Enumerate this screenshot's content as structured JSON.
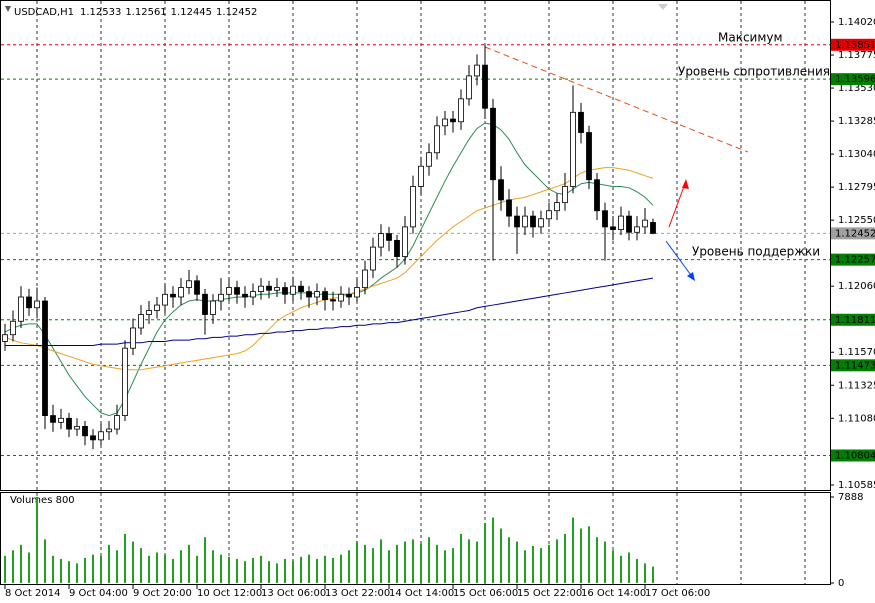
{
  "chart_data": {
    "type": "candlestick",
    "symbol": "USDCAD,H1",
    "categories": [
      "8 Oct 2014",
      null,
      null,
      null,
      null,
      null,
      null,
      null,
      "9 Oct 04:00",
      null,
      null,
      null,
      null,
      null,
      null,
      null,
      "9 Oct 20:00",
      null,
      null,
      null,
      null,
      null,
      null,
      null,
      "10 Oct 12:00",
      null,
      null,
      null,
      null,
      null,
      null,
      null,
      "13 Oct 06:00",
      null,
      null,
      null,
      null,
      null,
      null,
      null,
      "13 Oct 22:00",
      null,
      null,
      null,
      null,
      null,
      null,
      null,
      "14 Oct 14:00",
      null,
      null,
      null,
      null,
      null,
      null,
      null,
      "15 Oct 06:00",
      null,
      null,
      null,
      null,
      null,
      null,
      null,
      "15 Oct 22:00",
      null,
      null,
      null,
      null,
      null,
      null,
      null,
      "16 Oct 14:00",
      null,
      null,
      null,
      null,
      null,
      null,
      null,
      "17 Oct 06:00",
      null
    ],
    "candles": [
      [
        1.1165,
        1.1178,
        1.1158,
        1.117
      ],
      [
        1.117,
        1.1188,
        1.1165,
        1.118
      ],
      [
        1.118,
        1.1206,
        1.1175,
        1.1198
      ],
      [
        1.1198,
        1.1204,
        1.1184,
        1.119
      ],
      [
        1.119,
        1.1205,
        1.1182,
        1.1195
      ],
      [
        1.1195,
        1.1198,
        1.11,
        1.111
      ],
      [
        1.111,
        1.1118,
        1.1098,
        1.1105
      ],
      [
        1.1105,
        1.1115,
        1.11,
        1.1108
      ],
      [
        1.1108,
        1.1112,
        1.1094,
        1.11
      ],
      [
        1.11,
        1.1108,
        1.1095,
        1.1102
      ],
      [
        1.1102,
        1.1106,
        1.1088,
        1.1095
      ],
      [
        1.1095,
        1.11,
        1.1085,
        1.1092
      ],
      [
        1.1092,
        1.1104,
        1.1088,
        1.1098
      ],
      [
        1.1098,
        1.1106,
        1.1092,
        1.11
      ],
      [
        1.11,
        1.1118,
        1.1096,
        1.111
      ],
      [
        1.111,
        1.1166,
        1.1106,
        1.116
      ],
      [
        1.116,
        1.1182,
        1.1155,
        1.1175
      ],
      [
        1.1175,
        1.1192,
        1.117,
        1.1185
      ],
      [
        1.1185,
        1.1195,
        1.1178,
        1.1188
      ],
      [
        1.1188,
        1.1198,
        1.1182,
        1.1192
      ],
      [
        1.1192,
        1.1208,
        1.1186,
        1.12
      ],
      [
        1.12,
        1.1206,
        1.119,
        1.1198
      ],
      [
        1.1198,
        1.1212,
        1.1192,
        1.1205
      ],
      [
        1.1205,
        1.1218,
        1.12,
        1.121
      ],
      [
        1.121,
        1.1214,
        1.1195,
        1.12
      ],
      [
        1.12,
        1.1204,
        1.117,
        1.1185
      ],
      [
        1.1185,
        1.12,
        1.1178,
        1.1195
      ],
      [
        1.1195,
        1.1212,
        1.1188,
        1.12
      ],
      [
        1.12,
        1.1212,
        1.1195,
        1.1205
      ],
      [
        1.1205,
        1.121,
        1.1193,
        1.12
      ],
      [
        1.12,
        1.1206,
        1.119,
        1.1198
      ],
      [
        1.1198,
        1.1208,
        1.1192,
        1.1202
      ],
      [
        1.1202,
        1.1212,
        1.1196,
        1.1206
      ],
      [
        1.1206,
        1.121,
        1.1197,
        1.1203
      ],
      [
        1.1203,
        1.1212,
        1.1198,
        1.1205
      ],
      [
        1.1205,
        1.1209,
        1.1193,
        1.12
      ],
      [
        1.12,
        1.1213,
        1.1195,
        1.1206
      ],
      [
        1.1206,
        1.121,
        1.1196,
        1.1202
      ],
      [
        1.1202,
        1.1206,
        1.119,
        1.1198
      ],
      [
        1.1198,
        1.1208,
        1.1192,
        1.1202
      ],
      [
        1.1202,
        1.1205,
        1.1188,
        1.1196
      ],
      [
        1.1196,
        1.1202,
        1.1188,
        1.1195
      ],
      [
        1.1195,
        1.1206,
        1.119,
        1.12
      ],
      [
        1.12,
        1.1205,
        1.1192,
        1.1198
      ],
      [
        1.1198,
        1.1212,
        1.1194,
        1.1205
      ],
      [
        1.1205,
        1.1225,
        1.12,
        1.1218
      ],
      [
        1.1218,
        1.1242,
        1.1212,
        1.1235
      ],
      [
        1.1235,
        1.1252,
        1.1228,
        1.1245
      ],
      [
        1.1245,
        1.125,
        1.1232,
        1.124
      ],
      [
        1.124,
        1.1244,
        1.122,
        1.1228
      ],
      [
        1.1228,
        1.1258,
        1.1222,
        1.125
      ],
      [
        1.125,
        1.1288,
        1.1245,
        1.128
      ],
      [
        1.128,
        1.1302,
        1.1274,
        1.1295
      ],
      [
        1.1295,
        1.1312,
        1.1288,
        1.1305
      ],
      [
        1.1305,
        1.1332,
        1.13,
        1.1325
      ],
      [
        1.1325,
        1.1336,
        1.1318,
        1.133
      ],
      [
        1.133,
        1.1336,
        1.132,
        1.1328
      ],
      [
        1.1328,
        1.1352,
        1.1322,
        1.1345
      ],
      [
        1.1345,
        1.137,
        1.134,
        1.1362
      ],
      [
        1.1362,
        1.1378,
        1.1355,
        1.137
      ],
      [
        1.137,
        1.13851,
        1.133,
        1.1338
      ],
      [
        1.1338,
        1.1345,
        1.1225,
        1.1285
      ],
      [
        1.1285,
        1.1295,
        1.1262,
        1.127
      ],
      [
        1.127,
        1.1278,
        1.125,
        1.1258
      ],
      [
        1.1258,
        1.1265,
        1.123,
        1.125
      ],
      [
        1.125,
        1.1265,
        1.1244,
        1.1258
      ],
      [
        1.1258,
        1.1262,
        1.1242,
        1.125
      ],
      [
        1.125,
        1.1262,
        1.1245,
        1.1256
      ],
      [
        1.1256,
        1.1268,
        1.125,
        1.1262
      ],
      [
        1.1262,
        1.1275,
        1.1255,
        1.1268
      ],
      [
        1.1268,
        1.129,
        1.1262,
        1.128
      ],
      [
        1.128,
        1.1355,
        1.1275,
        1.1335
      ],
      [
        1.1335,
        1.1342,
        1.1312,
        1.132
      ],
      [
        1.132,
        1.1325,
        1.1278,
        1.1285
      ],
      [
        1.1285,
        1.129,
        1.1255,
        1.1262
      ],
      [
        1.1262,
        1.1268,
        1.1225,
        1.125
      ],
      [
        1.125,
        1.1258,
        1.124,
        1.1248
      ],
      [
        1.1248,
        1.1265,
        1.1244,
        1.1258
      ],
      [
        1.1258,
        1.1262,
        1.124,
        1.1246
      ],
      [
        1.1246,
        1.1258,
        1.124,
        1.125
      ],
      [
        1.125,
        1.1264,
        1.1245,
        1.1255
      ],
      [
        1.12533,
        1.12561,
        1.12445,
        1.12452
      ]
    ],
    "series": [
      {
        "color": "#2e8b57",
        "values": [
          1.1172,
          1.1175,
          1.1177,
          1.1178,
          1.1178,
          1.117,
          1.116,
          1.115,
          1.114,
          1.1132,
          1.1124,
          1.1118,
          1.1112,
          1.111,
          1.1112,
          1.1122,
          1.1135,
          1.1148,
          1.116,
          1.1172,
          1.1181,
          1.1187,
          1.1192,
          1.1195,
          1.1196,
          1.1195,
          1.1195,
          1.1196,
          1.1197,
          1.1198,
          1.1198,
          1.1199,
          1.12,
          1.12,
          1.1201,
          1.1201,
          1.1201,
          1.1201,
          1.1201,
          1.12,
          1.12,
          1.12,
          1.12,
          1.12,
          1.1201,
          1.1203,
          1.1207,
          1.1212,
          1.1216,
          1.122,
          1.1226,
          1.1236,
          1.1248,
          1.126,
          1.1272,
          1.1284,
          1.1295,
          1.1305,
          1.1315,
          1.1323,
          1.1327,
          1.1326,
          1.1322,
          1.1315,
          1.1305,
          1.1296,
          1.129,
          1.1284,
          1.1278,
          1.1275,
          1.1274,
          1.1278,
          1.1282,
          1.1283,
          1.1282,
          1.1281,
          1.128,
          1.128,
          1.1279,
          1.1276,
          1.1272,
          1.1266
        ]
      },
      {
        "color": "#f0a020",
        "values": [
          1.1168,
          1.1166,
          1.1164,
          1.1163,
          1.1162,
          1.116,
          1.1158,
          1.1156,
          1.1154,
          1.1152,
          1.115,
          1.1148,
          1.1147,
          1.1146,
          1.1145,
          1.1144,
          1.1144,
          1.1144,
          1.1145,
          1.1146,
          1.1147,
          1.1148,
          1.1149,
          1.115,
          1.1151,
          1.1152,
          1.1153,
          1.1154,
          1.1155,
          1.1156,
          1.1158,
          1.1162,
          1.1168,
          1.1174,
          1.118,
          1.1184,
          1.1187,
          1.119,
          1.1192,
          1.1194,
          1.1196,
          1.1197,
          1.1198,
          1.12,
          1.1202,
          1.1204,
          1.1206,
          1.1208,
          1.121,
          1.1212,
          1.1216,
          1.1222,
          1.1228,
          1.1234,
          1.124,
          1.1245,
          1.125,
          1.1254,
          1.1258,
          1.1262,
          1.1264,
          1.1266,
          1.1268,
          1.127,
          1.1271,
          1.1272,
          1.1274,
          1.1276,
          1.1278,
          1.128,
          1.1282,
          1.1286,
          1.129,
          1.1292,
          1.1293,
          1.1294,
          1.1294,
          1.1293,
          1.1292,
          1.129,
          1.1288,
          1.1286
        ]
      },
      {
        "color": "#00008b",
        "values": [
          1.1162,
          1.1162,
          1.1162,
          1.1162,
          1.1162,
          1.1162,
          1.1162,
          1.1162,
          1.1162,
          1.1162,
          1.1162,
          1.1162,
          1.1163,
          1.1163,
          1.1163,
          1.1164,
          1.1164,
          1.1164,
          1.1165,
          1.1165,
          1.1165,
          1.1166,
          1.1166,
          1.1166,
          1.1167,
          1.1167,
          1.1168,
          1.1168,
          1.1169,
          1.1169,
          1.117,
          1.117,
          1.1171,
          1.1171,
          1.1172,
          1.1172,
          1.1173,
          1.1173,
          1.1174,
          1.1174,
          1.1175,
          1.1175,
          1.1176,
          1.1176,
          1.1177,
          1.1177,
          1.1178,
          1.1178,
          1.1179,
          1.1179,
          1.118,
          1.1181,
          1.1182,
          1.1183,
          1.1184,
          1.1185,
          1.1186,
          1.1187,
          1.1188,
          1.119,
          1.1191,
          1.1192,
          1.1193,
          1.1194,
          1.1195,
          1.1196,
          1.1197,
          1.1198,
          1.1199,
          1.12,
          1.1201,
          1.1202,
          1.1203,
          1.1204,
          1.1205,
          1.1206,
          1.1207,
          1.1208,
          1.1209,
          1.121,
          1.1211,
          1.1212
        ]
      }
    ],
    "levels": [
      {
        "value": 1.13851,
        "color": "#e00000"
      },
      {
        "value": 1.13596,
        "color": "#008000"
      },
      {
        "value": 1.12452,
        "color": "#a0a0a0"
      },
      {
        "value": 1.12257,
        "color": "#008000"
      },
      {
        "value": 1.11811,
        "color": "#008000"
      },
      {
        "value": 1.11473,
        "color": "#008000"
      },
      {
        "value": 1.10804,
        "color": "#008000"
      }
    ],
    "ylim": [
      1.10548,
      1.14161
    ],
    "yticks": [
      {
        "value": 1.1402,
        "label": "1.14020"
      },
      1.13775,
      {
        "value": 1.1353,
        "label": "1.13530"
      },
      1.13285,
      {
        "value": 1.1304,
        "label": "1.13040"
      },
      1.12795,
      {
        "value": 1.1255,
        "label": "1.12550"
      },
      {
        "value": 1.1206,
        "label": "1.12060"
      },
      {
        "value": 1.1157,
        "label": "1.11570"
      },
      1.11325,
      {
        "value": 1.1108,
        "label": "1.11080"
      },
      1.10585
    ],
    "annotations": [
      "Максимум",
      "Уровень сопротивления",
      "Уровень поддержки"
    ],
    "volume_title": "Volumes 800",
    "volume_color": "#22a022",
    "volumes": [
      2500,
      3000,
      3500,
      2800,
      7888,
      4000,
      2500,
      2200,
      2000,
      1800,
      2300,
      2600,
      2500,
      3500,
      3000,
      4500,
      3800,
      3200,
      2500,
      2800,
      2600,
      2200,
      3000,
      3500,
      2500,
      4200,
      3000,
      2600,
      2400,
      2200,
      2000,
      2300,
      2500,
      2000,
      1800,
      2200,
      2000,
      2400,
      2600,
      2200,
      2500,
      2300,
      2600,
      3000,
      3800,
      3500,
      3200,
      4000,
      3000,
      3500,
      3800,
      4000,
      3600,
      4200,
      3500,
      3000,
      3200,
      4500,
      4000,
      3800,
      5500,
      6000,
      5000,
      4200,
      3800,
      3000,
      3400,
      3200,
      3500,
      4000,
      4500,
      6000,
      5000,
      5200,
      4200,
      3800,
      3000,
      2500,
      2800,
      2200,
      1800,
      1500
    ],
    "vlim": [
      0,
      7888
    ],
    "vticks": [
      7888,
      0
    ]
  }
}
